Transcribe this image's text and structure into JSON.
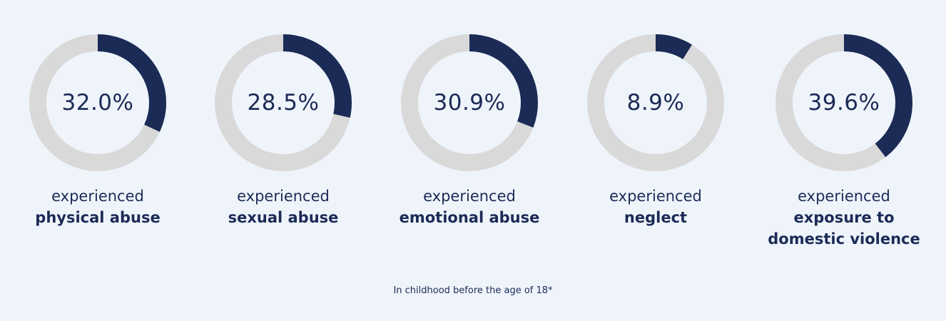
{
  "colors": {
    "fill": "#1b2b56",
    "track": "#d9d9d9",
    "background": "#eff4fb"
  },
  "chart_data": {
    "type": "pie",
    "items": [
      {
        "value": 32.0,
        "label": "32.0%",
        "prefix": "experienced",
        "category": "physical abuse"
      },
      {
        "value": 28.5,
        "label": "28.5%",
        "prefix": "experienced",
        "category": "sexual abuse"
      },
      {
        "value": 30.9,
        "label": "30.9%",
        "prefix": "experienced",
        "category": "emotional abuse"
      },
      {
        "value": 8.9,
        "label": "8.9%",
        "prefix": "experienced",
        "category": "neglect"
      },
      {
        "value": 39.6,
        "label": "39.6%",
        "prefix": "experienced",
        "category": "exposure to domestic violence"
      }
    ],
    "footnote": "In childhood before the age of 18*"
  }
}
